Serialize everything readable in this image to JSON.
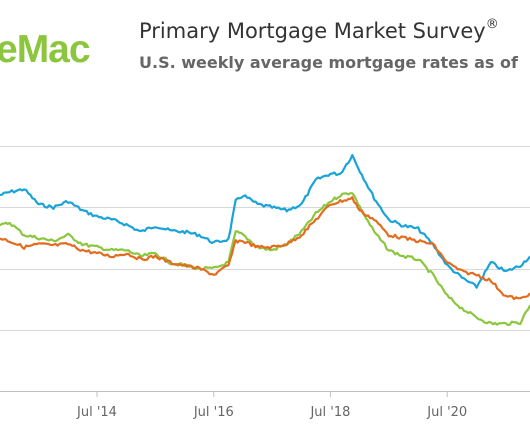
{
  "header": {
    "logo_text": "eMac",
    "title": "Primary Mortgage Market Survey",
    "title_mark": "®",
    "subtitle": "U.S. weekly average mortgage rates as of"
  },
  "chart_data": {
    "type": "line",
    "title": "Primary Mortgage Market Survey",
    "subtitle": "U.S. weekly average mortgage rates as of",
    "x_range": [
      "2012-11-01",
      "2021-12-01"
    ],
    "y_range": [
      1.0,
      6.0
    ],
    "y_gridlines": [
      2,
      3,
      4,
      5
    ],
    "x_ticks": [
      {
        "date": "2014-07-01",
        "label": "Jul '14"
      },
      {
        "date": "2016-07-01",
        "label": "Jul '16"
      },
      {
        "date": "2018-07-01",
        "label": "Jul '18"
      },
      {
        "date": "2020-07-01",
        "label": "Jul '20"
      }
    ],
    "series": [
      {
        "color": "#1aa3d9",
        "points": [
          [
            "2012-11-01",
            4.2
          ],
          [
            "2013-01-01",
            4.25
          ],
          [
            "2013-04-01",
            4.3
          ],
          [
            "2013-07-01",
            4.05
          ],
          [
            "2013-10-01",
            4.0
          ],
          [
            "2014-01-01",
            4.1
          ],
          [
            "2014-04-01",
            3.95
          ],
          [
            "2014-07-01",
            3.85
          ],
          [
            "2014-10-01",
            3.8
          ],
          [
            "2015-01-01",
            3.72
          ],
          [
            "2015-04-01",
            3.6
          ],
          [
            "2015-07-01",
            3.7
          ],
          [
            "2015-10-01",
            3.62
          ],
          [
            "2016-01-01",
            3.6
          ],
          [
            "2016-04-01",
            3.55
          ],
          [
            "2016-07-01",
            3.42
          ],
          [
            "2016-10-01",
            3.48
          ],
          [
            "2016-11-15",
            4.1
          ],
          [
            "2017-01-01",
            4.2
          ],
          [
            "2017-04-01",
            4.05
          ],
          [
            "2017-07-01",
            4.0
          ],
          [
            "2017-10-01",
            3.95
          ],
          [
            "2018-01-01",
            4.05
          ],
          [
            "2018-04-01",
            4.45
          ],
          [
            "2018-07-01",
            4.55
          ],
          [
            "2018-09-01",
            4.55
          ],
          [
            "2018-11-15",
            4.85
          ],
          [
            "2019-01-01",
            4.6
          ],
          [
            "2019-04-01",
            4.15
          ],
          [
            "2019-07-01",
            3.8
          ],
          [
            "2019-10-01",
            3.7
          ],
          [
            "2020-01-01",
            3.65
          ],
          [
            "2020-04-01",
            3.4
          ],
          [
            "2020-07-01",
            3.05
          ],
          [
            "2020-10-01",
            2.85
          ],
          [
            "2021-01-01",
            2.7
          ],
          [
            "2021-04-01",
            3.1
          ],
          [
            "2021-07-01",
            2.95
          ],
          [
            "2021-10-01",
            3.05
          ],
          [
            "2021-12-01",
            3.2
          ]
        ]
      },
      {
        "color": "#8cc63f",
        "points": [
          [
            "2012-11-01",
            3.7
          ],
          [
            "2013-01-01",
            3.75
          ],
          [
            "2013-04-01",
            3.55
          ],
          [
            "2013-07-01",
            3.5
          ],
          [
            "2013-10-01",
            3.45
          ],
          [
            "2014-01-01",
            3.55
          ],
          [
            "2014-04-01",
            3.4
          ],
          [
            "2014-07-01",
            3.35
          ],
          [
            "2014-10-01",
            3.3
          ],
          [
            "2015-01-01",
            3.3
          ],
          [
            "2015-04-01",
            3.2
          ],
          [
            "2015-07-01",
            3.25
          ],
          [
            "2015-10-01",
            3.1
          ],
          [
            "2016-01-01",
            3.05
          ],
          [
            "2016-04-01",
            3.0
          ],
          [
            "2016-07-01",
            3.0
          ],
          [
            "2016-10-01",
            3.1
          ],
          [
            "2016-11-15",
            3.6
          ],
          [
            "2017-01-01",
            3.55
          ],
          [
            "2017-04-01",
            3.35
          ],
          [
            "2017-07-01",
            3.3
          ],
          [
            "2017-10-01",
            3.4
          ],
          [
            "2018-01-01",
            3.6
          ],
          [
            "2018-04-01",
            3.9
          ],
          [
            "2018-07-01",
            4.1
          ],
          [
            "2018-09-01",
            4.2
          ],
          [
            "2018-11-15",
            4.25
          ],
          [
            "2019-01-01",
            4.0
          ],
          [
            "2019-04-01",
            3.6
          ],
          [
            "2019-07-01",
            3.3
          ],
          [
            "2019-10-01",
            3.2
          ],
          [
            "2020-01-01",
            3.15
          ],
          [
            "2020-04-01",
            2.9
          ],
          [
            "2020-07-01",
            2.55
          ],
          [
            "2020-10-01",
            2.35
          ],
          [
            "2021-01-01",
            2.2
          ],
          [
            "2021-04-01",
            2.1
          ],
          [
            "2021-07-01",
            2.1
          ],
          [
            "2021-10-01",
            2.12
          ],
          [
            "2021-12-01",
            2.4
          ]
        ]
      },
      {
        "color": "#e46c1f",
        "points": [
          [
            "2012-11-01",
            3.5
          ],
          [
            "2013-01-01",
            3.45
          ],
          [
            "2013-04-01",
            3.35
          ],
          [
            "2013-07-01",
            3.4
          ],
          [
            "2013-10-01",
            3.38
          ],
          [
            "2014-01-01",
            3.4
          ],
          [
            "2014-04-01",
            3.3
          ],
          [
            "2014-07-01",
            3.25
          ],
          [
            "2014-10-01",
            3.2
          ],
          [
            "2015-01-01",
            3.25
          ],
          [
            "2015-04-01",
            3.15
          ],
          [
            "2015-07-01",
            3.2
          ],
          [
            "2015-10-01",
            3.1
          ],
          [
            "2016-01-01",
            3.05
          ],
          [
            "2016-04-01",
            3.0
          ],
          [
            "2016-07-01",
            2.9
          ],
          [
            "2016-10-01",
            3.05
          ],
          [
            "2016-11-15",
            3.45
          ],
          [
            "2017-01-01",
            3.45
          ],
          [
            "2017-04-01",
            3.35
          ],
          [
            "2017-07-01",
            3.35
          ],
          [
            "2017-10-01",
            3.4
          ],
          [
            "2018-01-01",
            3.55
          ],
          [
            "2018-04-01",
            3.8
          ],
          [
            "2018-07-01",
            4.05
          ],
          [
            "2018-09-01",
            4.1
          ],
          [
            "2018-11-15",
            4.15
          ],
          [
            "2019-01-01",
            3.95
          ],
          [
            "2019-04-01",
            3.8
          ],
          [
            "2019-07-01",
            3.55
          ],
          [
            "2019-10-01",
            3.5
          ],
          [
            "2020-01-01",
            3.45
          ],
          [
            "2020-04-01",
            3.4
          ],
          [
            "2020-07-01",
            3.1
          ],
          [
            "2020-10-01",
            2.95
          ],
          [
            "2021-01-01",
            2.9
          ],
          [
            "2021-04-01",
            2.8
          ],
          [
            "2021-07-01",
            2.55
          ],
          [
            "2021-10-01",
            2.5
          ],
          [
            "2021-12-01",
            2.6
          ]
        ]
      }
    ]
  }
}
